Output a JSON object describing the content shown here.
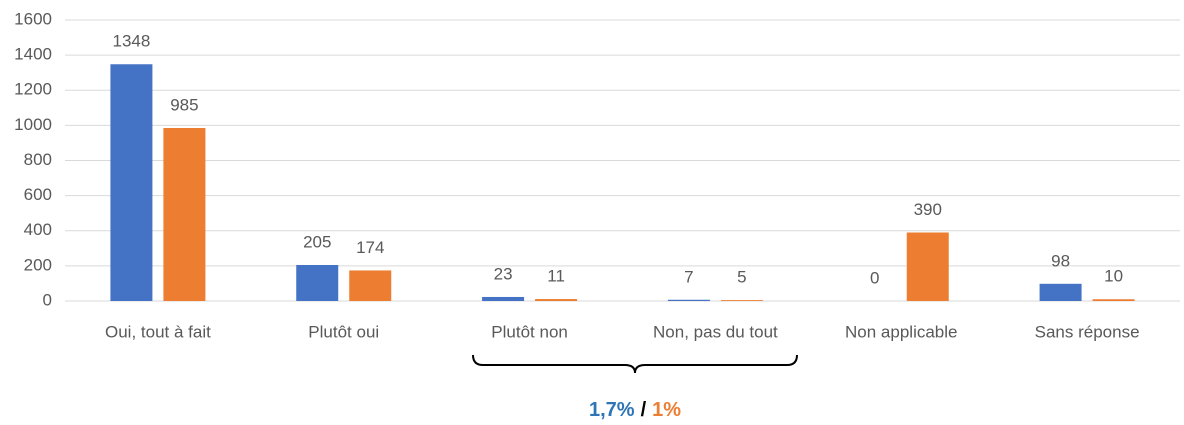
{
  "chart_data": {
    "type": "bar",
    "categories": [
      "Oui, tout à fait",
      "Plutôt oui",
      "Plutôt non",
      "Non, pas du tout",
      "Non applicable",
      "Sans réponse"
    ],
    "series": [
      {
        "color": "#4472c4",
        "values": [
          1348,
          205,
          23,
          7,
          0,
          98
        ]
      },
      {
        "color": "#ed7d31",
        "values": [
          985,
          174,
          11,
          5,
          390,
          10
        ]
      }
    ],
    "ylim": [
      0,
      1600
    ],
    "yticks": [
      0,
      200,
      400,
      600,
      800,
      1000,
      1200,
      1400,
      1600
    ],
    "grid": true,
    "annotation": {
      "parts": [
        {
          "text": "1,7%",
          "color": "#2e75b6"
        },
        {
          "text": "/",
          "color": "#000000"
        },
        {
          "text": "1%",
          "color": "#ed7d31"
        }
      ]
    }
  }
}
